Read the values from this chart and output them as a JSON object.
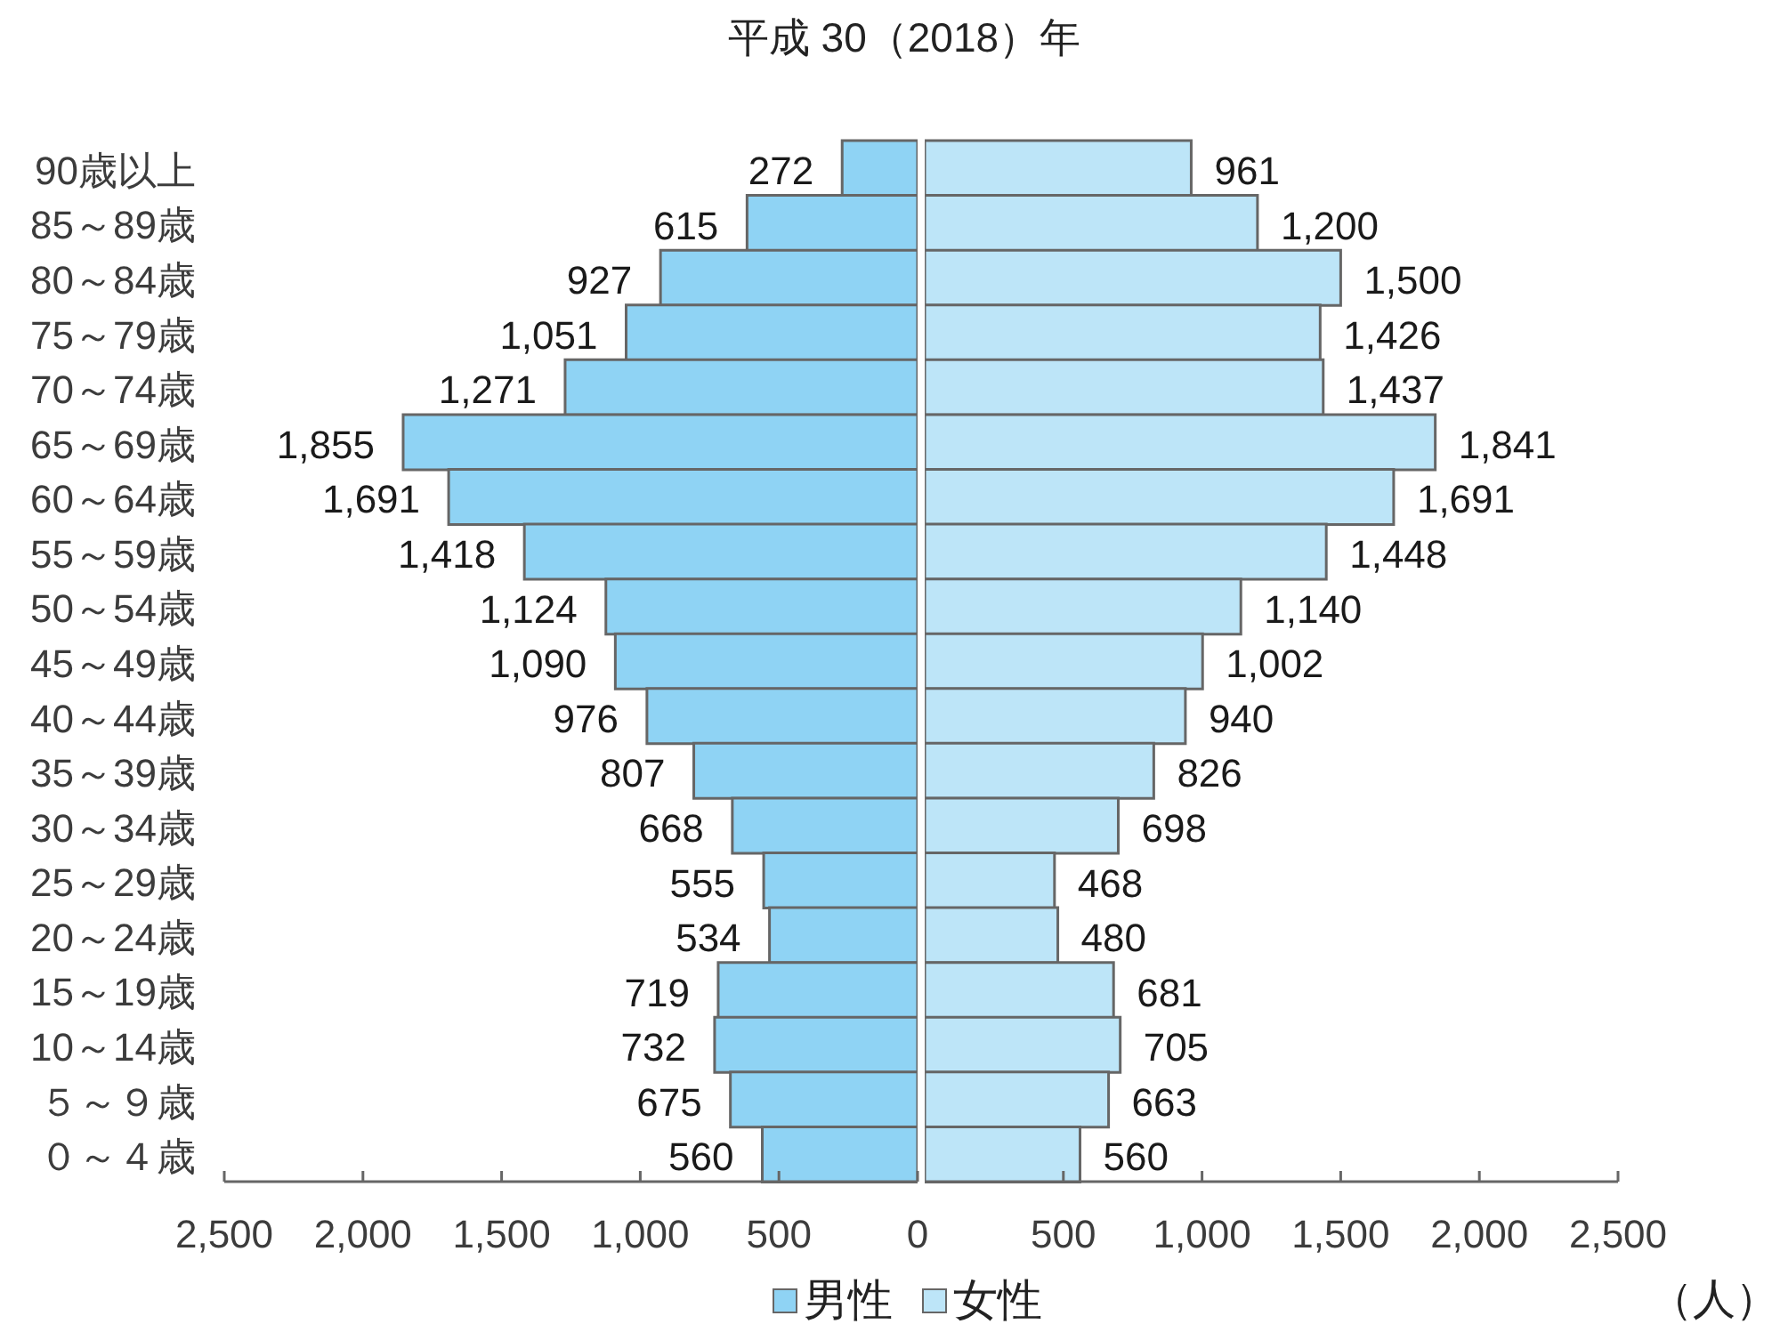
{
  "chart_data": [
    {
      "type": "bar",
      "orientation": "horizontal",
      "title": "平成 30（2018）年",
      "categories": [
        "90歳以上",
        "85～89歳",
        "80～84歳",
        "75～79歳",
        "70～74歳",
        "65～69歳",
        "60～64歳",
        "55～59歳",
        "50～54歳",
        "45～49歳",
        "40～44歳",
        "35～39歳",
        "30～34歳",
        "25～29歳",
        "20～24歳",
        "15～19歳",
        "10～14歳",
        "５～９歳",
        "０～４歳"
      ],
      "series": [
        {
          "name": "男性",
          "color": "#8fd3f4",
          "values": [
            272,
            615,
            927,
            1051,
            1271,
            1855,
            1691,
            1418,
            1124,
            1090,
            976,
            807,
            668,
            555,
            534,
            719,
            732,
            675,
            560
          ],
          "value_labels": [
            "272",
            "615",
            "927",
            "1,051",
            "1,271",
            "1,855",
            "1,691",
            "1,418",
            "1,124",
            "1,090",
            "976",
            "807",
            "668",
            "555",
            "534",
            "719",
            "732",
            "675",
            "560"
          ]
        }
      ],
      "xlim": [
        2500,
        0
      ],
      "xticks": [
        {
          "value": 2500,
          "label": "2,500"
        },
        {
          "value": 2000,
          "label": "2,000"
        },
        {
          "value": 1500,
          "label": "1,500"
        },
        {
          "value": 1000,
          "label": "1,000"
        },
        {
          "value": 500,
          "label": "500"
        },
        {
          "value": 0,
          "label": "0"
        }
      ],
      "legend": "bottom"
    },
    {
      "type": "bar",
      "orientation": "horizontal",
      "xlabel": "（人）",
      "tick_labels": "x",
      "categories": [
        null,
        null,
        null,
        null,
        null,
        null,
        null,
        null,
        null,
        null,
        null,
        null,
        null,
        null,
        null,
        null,
        null,
        null,
        null
      ],
      "series": [
        {
          "name": "女性",
          "color": "#bde5f8",
          "values": [
            961,
            1200,
            1500,
            1426,
            1437,
            1841,
            1691,
            1448,
            1140,
            1002,
            940,
            826,
            698,
            468,
            480,
            681,
            705,
            663,
            560
          ],
          "value_labels": [
            "961",
            "1,200",
            "1,500",
            "1,426",
            "1,437",
            "1,841",
            "1,691",
            "1,448",
            "1,140",
            "1,002",
            "940",
            "826",
            "698",
            "468",
            "480",
            "681",
            "705",
            "663",
            "560"
          ]
        }
      ],
      "xlim": [
        0,
        2500
      ],
      "xticks": [
        {
          "value": 500,
          "label": "500"
        },
        {
          "value": 1000,
          "label": "1,000"
        },
        {
          "value": 1500,
          "label": "1,500"
        },
        {
          "value": 2000,
          "label": "2,000"
        },
        {
          "value": 2500,
          "label": "2,500"
        }
      ],
      "legend": "bottom"
    }
  ]
}
